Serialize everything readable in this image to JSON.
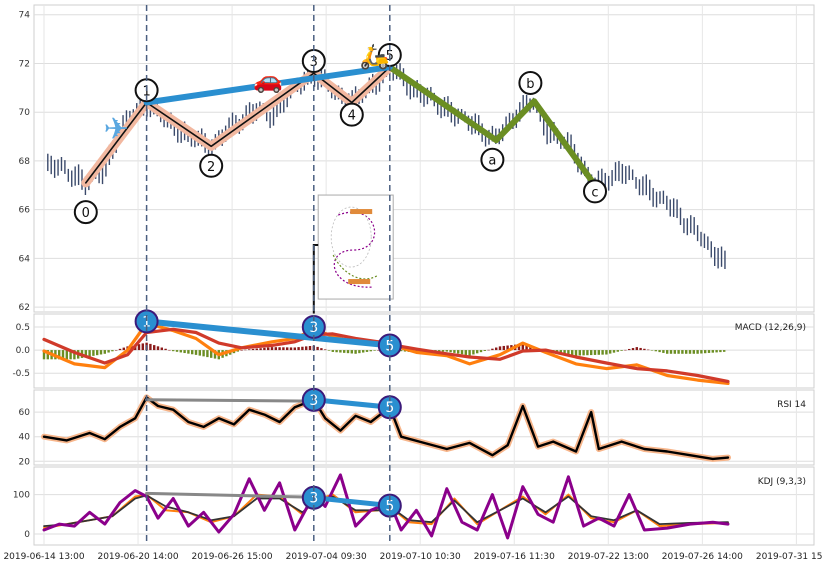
{
  "chart_data": {
    "type": "line",
    "x_ticks": [
      "2019-06-14 13:00",
      "2019-06-20 14:00",
      "2019-06-26 15:00",
      "2019-07-04 09:30",
      "2019-07-10 10:30",
      "2019-07-16 11:30",
      "2019-07-22 13:00",
      "2019-07-26 14:00",
      "2019-07-31 15:00"
    ],
    "grid": true,
    "colors": {
      "price_bar": "#3b4a6b",
      "impulse_halo": "#f2b8a0",
      "impulse_line": "#111111",
      "correction": "#6b8e23",
      "trend_line": "#2a8fd0",
      "divergence_gray": "#888888",
      "vline": "#4a5f80",
      "macd": "#ff7f0e",
      "signal": "#d03a2a",
      "hist_pos": "#8b1a1a",
      "hist_neg": "#6b8e23",
      "rsi": "#000000",
      "rsi_halo": "#f7b58a",
      "kdj_k": "#8b008b",
      "kdj_d": "#ff7f0e",
      "kdj_j": "#333333"
    },
    "panels": [
      {
        "name": "price",
        "ylim": [
          61.8,
          74.4
        ],
        "yticks": [
          "62",
          "64",
          "66",
          "68",
          "70",
          "72",
          "74"
        ],
        "wave_labels": [
          {
            "label": "0",
            "x": 0.055,
            "y": 65.9
          },
          {
            "label": "1",
            "x": 0.135,
            "y": 70.9
          },
          {
            "label": "2",
            "x": 0.22,
            "y": 67.8
          },
          {
            "label": "3",
            "x": 0.355,
            "y": 72.1
          },
          {
            "label": "4",
            "x": 0.405,
            "y": 69.9
          },
          {
            "label": "5",
            "x": 0.455,
            "y": 72.35
          },
          {
            "label": "a",
            "x": 0.59,
            "y": 68.05
          },
          {
            "label": "b",
            "x": 0.64,
            "y": 71.2
          },
          {
            "label": "c",
            "x": 0.725,
            "y": 66.75
          }
        ],
        "impulse_wave": [
          [
            0.055,
            67.1
          ],
          [
            0.135,
            70.4
          ],
          [
            0.22,
            68.6
          ],
          [
            0.355,
            71.6
          ],
          [
            0.405,
            70.4
          ],
          [
            0.455,
            71.85
          ]
        ],
        "corrective_wave": [
          [
            0.455,
            71.85
          ],
          [
            0.595,
            68.85
          ],
          [
            0.645,
            70.45
          ],
          [
            0.725,
            67.0
          ]
        ],
        "trend_line": [
          [
            0.135,
            70.4
          ],
          [
            0.455,
            71.85
          ]
        ],
        "vlines_x": [
          0.135,
          0.355,
          0.455
        ]
      },
      {
        "name": "macd",
        "label": "MACD (12,26,9)",
        "ylim": [
          -0.82,
          0.78
        ],
        "yticks": [
          "0.5",
          "0.0",
          "-0.5"
        ],
        "markers": [
          {
            "label": "1",
            "x": 0.135,
            "y": 0.62
          },
          {
            "label": "3",
            "x": 0.355,
            "y": 0.5
          },
          {
            "label": "5",
            "x": 0.455,
            "y": 0.1
          }
        ],
        "trend_line": [
          [
            0.135,
            0.62
          ],
          [
            0.455,
            0.1
          ]
        ]
      },
      {
        "name": "rsi",
        "label": "RSI 14",
        "ylim": [
          17,
          78
        ],
        "yticks": [
          "60",
          "40",
          "20"
        ],
        "markers": [
          {
            "label": "3",
            "x": 0.355,
            "y": 70
          },
          {
            "label": "5",
            "x": 0.455,
            "y": 64
          }
        ],
        "trend_gray": [
          [
            0.135,
            70
          ],
          [
            0.355,
            69
          ]
        ],
        "trend_blue": [
          [
            0.355,
            70
          ],
          [
            0.455,
            64
          ]
        ]
      },
      {
        "name": "kdj",
        "label": "KDJ (9,3,3)",
        "ylim": [
          -28,
          170
        ],
        "yticks": [
          "100",
          "0"
        ],
        "markers": [
          {
            "label": "3",
            "x": 0.355,
            "y": 92
          },
          {
            "label": "5",
            "x": 0.455,
            "y": 72
          }
        ],
        "trend_gray": [
          [
            0.135,
            103
          ],
          [
            0.355,
            93
          ]
        ],
        "trend_blue": [
          [
            0.355,
            92
          ],
          [
            0.455,
            72
          ]
        ]
      }
    ],
    "approx_series": {
      "price_close": [
        [
          0.0,
          67.9
        ],
        [
          0.03,
          67.6
        ],
        [
          0.055,
          67.1
        ],
        [
          0.08,
          67.6
        ],
        [
          0.1,
          69.3
        ],
        [
          0.135,
          70.4
        ],
        [
          0.16,
          69.7
        ],
        [
          0.19,
          69.0
        ],
        [
          0.22,
          68.6
        ],
        [
          0.25,
          69.5
        ],
        [
          0.28,
          70.1
        ],
        [
          0.3,
          69.8
        ],
        [
          0.32,
          70.7
        ],
        [
          0.355,
          71.6
        ],
        [
          0.38,
          70.9
        ],
        [
          0.405,
          70.4
        ],
        [
          0.43,
          71.0
        ],
        [
          0.455,
          71.85
        ],
        [
          0.48,
          71.1
        ],
        [
          0.52,
          70.3
        ],
        [
          0.56,
          69.6
        ],
        [
          0.595,
          68.85
        ],
        [
          0.62,
          69.9
        ],
        [
          0.645,
          70.45
        ],
        [
          0.66,
          69.3
        ],
        [
          0.69,
          68.7
        ],
        [
          0.725,
          67.0
        ],
        [
          0.76,
          67.6
        ],
        [
          0.8,
          66.7
        ],
        [
          0.83,
          66.0
        ],
        [
          0.86,
          65.0
        ]
      ],
      "macd": [
        [
          0.0,
          -0.02
        ],
        [
          0.04,
          -0.3
        ],
        [
          0.08,
          -0.38
        ],
        [
          0.11,
          0.0
        ],
        [
          0.135,
          0.58
        ],
        [
          0.17,
          0.42
        ],
        [
          0.2,
          0.25
        ],
        [
          0.23,
          -0.1
        ],
        [
          0.26,
          0.05
        ],
        [
          0.3,
          0.18
        ],
        [
          0.33,
          0.25
        ],
        [
          0.355,
          0.45
        ],
        [
          0.38,
          0.3
        ],
        [
          0.41,
          0.15
        ],
        [
          0.44,
          0.18
        ],
        [
          0.455,
          0.12
        ],
        [
          0.49,
          -0.05
        ],
        [
          0.53,
          -0.12
        ],
        [
          0.56,
          -0.3
        ],
        [
          0.6,
          -0.1
        ],
        [
          0.63,
          0.15
        ],
        [
          0.66,
          -0.05
        ],
        [
          0.7,
          -0.3
        ],
        [
          0.74,
          -0.4
        ],
        [
          0.78,
          -0.32
        ],
        [
          0.82,
          -0.55
        ],
        [
          0.86,
          -0.65
        ],
        [
          0.9,
          -0.72
        ]
      ],
      "signal": [
        [
          0.0,
          0.23
        ],
        [
          0.04,
          -0.05
        ],
        [
          0.08,
          -0.28
        ],
        [
          0.11,
          -0.1
        ],
        [
          0.135,
          0.38
        ],
        [
          0.17,
          0.45
        ],
        [
          0.2,
          0.38
        ],
        [
          0.23,
          0.15
        ],
        [
          0.26,
          0.05
        ],
        [
          0.3,
          0.1
        ],
        [
          0.33,
          0.18
        ],
        [
          0.355,
          0.33
        ],
        [
          0.38,
          0.35
        ],
        [
          0.41,
          0.25
        ],
        [
          0.44,
          0.18
        ],
        [
          0.455,
          0.12
        ],
        [
          0.49,
          0.02
        ],
        [
          0.53,
          -0.08
        ],
        [
          0.56,
          -0.15
        ],
        [
          0.6,
          -0.2
        ],
        [
          0.63,
          -0.02
        ],
        [
          0.66,
          0.0
        ],
        [
          0.7,
          -0.15
        ],
        [
          0.74,
          -0.28
        ],
        [
          0.78,
          -0.4
        ],
        [
          0.82,
          -0.45
        ],
        [
          0.86,
          -0.55
        ],
        [
          0.9,
          -0.68
        ]
      ],
      "rsi": [
        [
          0.0,
          40
        ],
        [
          0.03,
          37
        ],
        [
          0.06,
          43
        ],
        [
          0.08,
          38
        ],
        [
          0.1,
          48
        ],
        [
          0.12,
          55
        ],
        [
          0.135,
          72
        ],
        [
          0.15,
          65
        ],
        [
          0.17,
          62
        ],
        [
          0.19,
          52
        ],
        [
          0.21,
          48
        ],
        [
          0.23,
          55
        ],
        [
          0.25,
          50
        ],
        [
          0.27,
          62
        ],
        [
          0.29,
          58
        ],
        [
          0.31,
          52
        ],
        [
          0.33,
          64
        ],
        [
          0.355,
          70
        ],
        [
          0.37,
          55
        ],
        [
          0.39,
          45
        ],
        [
          0.41,
          57
        ],
        [
          0.43,
          52
        ],
        [
          0.455,
          64
        ],
        [
          0.47,
          40
        ],
        [
          0.5,
          35
        ],
        [
          0.53,
          30
        ],
        [
          0.56,
          35
        ],
        [
          0.59,
          25
        ],
        [
          0.61,
          33
        ],
        [
          0.63,
          65
        ],
        [
          0.65,
          32
        ],
        [
          0.67,
          36
        ],
        [
          0.7,
          28
        ],
        [
          0.72,
          60
        ],
        [
          0.73,
          30
        ],
        [
          0.76,
          36
        ],
        [
          0.79,
          30
        ],
        [
          0.82,
          28
        ],
        [
          0.85,
          25
        ],
        [
          0.88,
          22
        ],
        [
          0.9,
          23
        ]
      ],
      "kdj_k": [
        [
          0.0,
          10
        ],
        [
          0.02,
          25
        ],
        [
          0.04,
          20
        ],
        [
          0.06,
          55
        ],
        [
          0.08,
          25
        ],
        [
          0.1,
          80
        ],
        [
          0.12,
          110
        ],
        [
          0.135,
          95
        ],
        [
          0.15,
          40
        ],
        [
          0.17,
          90
        ],
        [
          0.19,
          20
        ],
        [
          0.21,
          55
        ],
        [
          0.23,
          5
        ],
        [
          0.25,
          50
        ],
        [
          0.27,
          140
        ],
        [
          0.29,
          60
        ],
        [
          0.31,
          130
        ],
        [
          0.33,
          10
        ],
        [
          0.355,
          100
        ],
        [
          0.37,
          70
        ],
        [
          0.39,
          150
        ],
        [
          0.41,
          20
        ],
        [
          0.43,
          60
        ],
        [
          0.455,
          80
        ],
        [
          0.47,
          10
        ],
        [
          0.49,
          60
        ],
        [
          0.51,
          -5
        ],
        [
          0.53,
          115
        ],
        [
          0.55,
          30
        ],
        [
          0.57,
          10
        ],
        [
          0.59,
          100
        ],
        [
          0.61,
          -10
        ],
        [
          0.63,
          120
        ],
        [
          0.65,
          50
        ],
        [
          0.67,
          30
        ],
        [
          0.69,
          145
        ],
        [
          0.71,
          20
        ],
        [
          0.73,
          40
        ],
        [
          0.75,
          20
        ],
        [
          0.77,
          100
        ],
        [
          0.79,
          10
        ],
        [
          0.82,
          15
        ],
        [
          0.85,
          25
        ],
        [
          0.88,
          30
        ],
        [
          0.9,
          25
        ]
      ],
      "kdj_d": [
        [
          0.0,
          15
        ],
        [
          0.03,
          25
        ],
        [
          0.06,
          35
        ],
        [
          0.09,
          45
        ],
        [
          0.12,
          95
        ],
        [
          0.135,
          100
        ],
        [
          0.16,
          60
        ],
        [
          0.19,
          55
        ],
        [
          0.22,
          30
        ],
        [
          0.25,
          45
        ],
        [
          0.28,
          100
        ],
        [
          0.31,
          95
        ],
        [
          0.34,
          50
        ],
        [
          0.355,
          85
        ],
        [
          0.38,
          100
        ],
        [
          0.41,
          55
        ],
        [
          0.44,
          60
        ],
        [
          0.455,
          70
        ],
        [
          0.48,
          30
        ],
        [
          0.51,
          25
        ],
        [
          0.54,
          90
        ],
        [
          0.57,
          25
        ],
        [
          0.6,
          60
        ],
        [
          0.63,
          95
        ],
        [
          0.66,
          50
        ],
        [
          0.69,
          100
        ],
        [
          0.72,
          40
        ],
        [
          0.75,
          30
        ],
        [
          0.78,
          60
        ],
        [
          0.81,
          20
        ],
        [
          0.85,
          25
        ],
        [
          0.9,
          28
        ]
      ],
      "kdj_j": [
        [
          0.0,
          20
        ],
        [
          0.03,
          25
        ],
        [
          0.06,
          35
        ],
        [
          0.09,
          45
        ],
        [
          0.12,
          90
        ],
        [
          0.135,
          98
        ],
        [
          0.16,
          70
        ],
        [
          0.19,
          55
        ],
        [
          0.22,
          35
        ],
        [
          0.25,
          45
        ],
        [
          0.28,
          90
        ],
        [
          0.31,
          90
        ],
        [
          0.34,
          55
        ],
        [
          0.355,
          80
        ],
        [
          0.38,
          95
        ],
        [
          0.41,
          60
        ],
        [
          0.44,
          60
        ],
        [
          0.455,
          70
        ],
        [
          0.48,
          35
        ],
        [
          0.51,
          30
        ],
        [
          0.54,
          85
        ],
        [
          0.57,
          30
        ],
        [
          0.6,
          60
        ],
        [
          0.63,
          90
        ],
        [
          0.66,
          55
        ],
        [
          0.69,
          95
        ],
        [
          0.72,
          45
        ],
        [
          0.75,
          35
        ],
        [
          0.78,
          60
        ],
        [
          0.81,
          25
        ],
        [
          0.85,
          28
        ],
        [
          0.9,
          30
        ]
      ]
    }
  }
}
